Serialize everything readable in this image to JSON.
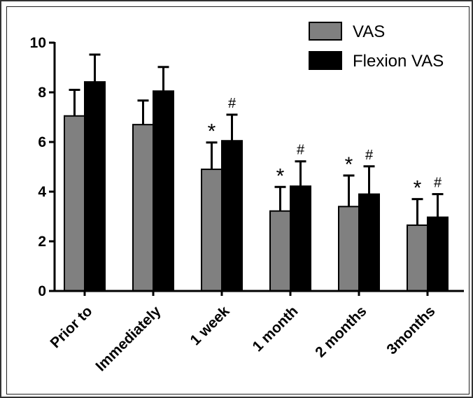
{
  "chart_data": {
    "type": "bar",
    "categories": [
      "Prior to",
      "Immediately",
      "1 week",
      "1 month",
      "2 months",
      "3months"
    ],
    "series": [
      {
        "name": "VAS",
        "color": "#808080",
        "values": [
          7.05,
          6.7,
          4.9,
          3.22,
          3.4,
          2.65
        ],
        "error": [
          1.05,
          0.97,
          1.08,
          0.97,
          1.25,
          1.05
        ],
        "annotations": [
          "",
          "",
          "*",
          "*",
          "*",
          "*"
        ]
      },
      {
        "name": "Flexion VAS",
        "color": "#000000",
        "values": [
          8.42,
          8.05,
          6.05,
          4.22,
          3.9,
          2.97
        ],
        "error": [
          1.1,
          0.97,
          1.05,
          1.0,
          1.12,
          0.93
        ],
        "annotations": [
          "",
          "",
          "#",
          "#",
          "#",
          "#"
        ]
      }
    ],
    "yticks": [
      "0",
      "2",
      "4",
      "6",
      "8",
      "10"
    ],
    "ylim": [
      0,
      10
    ],
    "legend_position": "top-right",
    "grid": false
  }
}
